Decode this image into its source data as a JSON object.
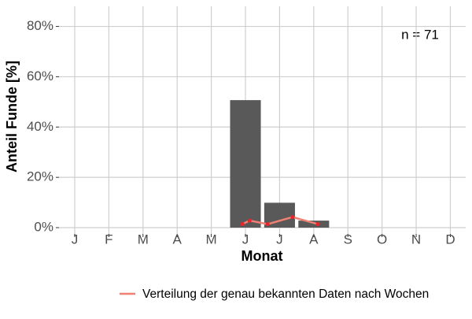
{
  "chart_data": {
    "type": "bar",
    "categories": [
      "J",
      "F",
      "M",
      "A",
      "M",
      "J",
      "J",
      "A",
      "S",
      "O",
      "N",
      "D"
    ],
    "values": [
      0,
      0,
      0,
      0,
      0,
      50.7,
      9.9,
      2.8,
      0,
      0,
      0,
      0
    ],
    "color": "#595959",
    "xlim": [
      0.54,
      12.45
    ],
    "ylim": [
      -2.5,
      88
    ],
    "yticks": [
      {
        "value": 0,
        "label": "0%"
      },
      {
        "value": 20,
        "label": "20%"
      },
      {
        "value": 40,
        "label": "40%"
      },
      {
        "value": 60,
        "label": "60%"
      },
      {
        "value": 80,
        "label": "80%"
      }
    ],
    "grid": true,
    "x_label": "Monat",
    "y_label": "Anteil Funde [%]",
    "annotation": "n = 71",
    "legend_position": "bottom",
    "series": [
      {
        "name": "Verteilung der genau bekannten Daten nach Wochen",
        "color": "#f07f74",
        "point_color": "#e8262a",
        "x": [
          5.91,
          6.12,
          6.65,
          7.38,
          8.12
        ],
        "values": [
          1.4,
          2.8,
          1.4,
          4.2,
          1.4
        ]
      }
    ]
  }
}
